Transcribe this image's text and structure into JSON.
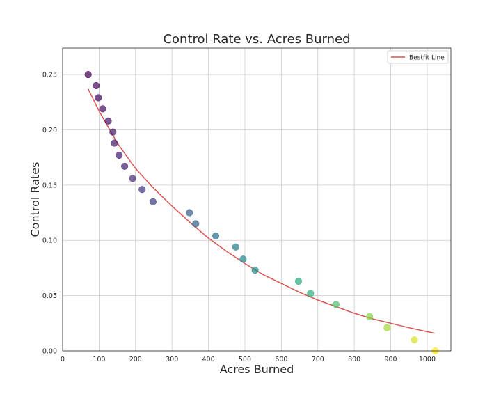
{
  "chart_data": {
    "type": "scatter",
    "title": "Control Rate vs. Acres Burned",
    "xlabel": "Acres Burned",
    "ylabel": "Control Rates",
    "xlim": [
      0,
      1065
    ],
    "ylim": [
      0,
      0.274
    ],
    "x_ticks": [
      0,
      100,
      200,
      300,
      400,
      500,
      600,
      700,
      800,
      900,
      1000
    ],
    "y_ticks": [
      0.0,
      0.05,
      0.1,
      0.15,
      0.2,
      0.25
    ],
    "y_tick_labels": [
      "0.00",
      "0.05",
      "0.10",
      "0.15",
      "0.20",
      "0.25"
    ],
    "grid": true,
    "legend": {
      "position": "top-right",
      "entries": [
        {
          "label": "Bestfit Line",
          "color": "#d9534f"
        }
      ]
    },
    "colormap": "viridis",
    "series": [
      {
        "kind": "scatter",
        "points": [
          {
            "x": 70,
            "y": 0.25
          },
          {
            "x": 92,
            "y": 0.24
          },
          {
            "x": 98,
            "y": 0.229
          },
          {
            "x": 110,
            "y": 0.219
          },
          {
            "x": 125,
            "y": 0.208
          },
          {
            "x": 138,
            "y": 0.198
          },
          {
            "x": 142,
            "y": 0.188
          },
          {
            "x": 155,
            "y": 0.177
          },
          {
            "x": 170,
            "y": 0.167
          },
          {
            "x": 192,
            "y": 0.156
          },
          {
            "x": 218,
            "y": 0.146
          },
          {
            "x": 248,
            "y": 0.135
          },
          {
            "x": 348,
            "y": 0.125
          },
          {
            "x": 365,
            "y": 0.115
          },
          {
            "x": 420,
            "y": 0.104
          },
          {
            "x": 475,
            "y": 0.094
          },
          {
            "x": 495,
            "y": 0.083
          },
          {
            "x": 528,
            "y": 0.073
          },
          {
            "x": 647,
            "y": 0.063
          },
          {
            "x": 680,
            "y": 0.052
          },
          {
            "x": 750,
            "y": 0.042
          },
          {
            "x": 842,
            "y": 0.031
          },
          {
            "x": 890,
            "y": 0.021
          },
          {
            "x": 965,
            "y": 0.01
          },
          {
            "x": 1022,
            "y": 0.0
          }
        ]
      },
      {
        "kind": "line",
        "name": "Bestfit Line",
        "color": "#d9534f",
        "points": [
          {
            "x": 70,
            "y": 0.237
          },
          {
            "x": 100,
            "y": 0.217
          },
          {
            "x": 150,
            "y": 0.188
          },
          {
            "x": 200,
            "y": 0.165
          },
          {
            "x": 250,
            "y": 0.147
          },
          {
            "x": 300,
            "y": 0.131
          },
          {
            "x": 350,
            "y": 0.116
          },
          {
            "x": 400,
            "y": 0.102
          },
          {
            "x": 450,
            "y": 0.09
          },
          {
            "x": 500,
            "y": 0.079
          },
          {
            "x": 550,
            "y": 0.069
          },
          {
            "x": 600,
            "y": 0.061
          },
          {
            "x": 650,
            "y": 0.053
          },
          {
            "x": 700,
            "y": 0.046
          },
          {
            "x": 750,
            "y": 0.04
          },
          {
            "x": 800,
            "y": 0.034
          },
          {
            "x": 850,
            "y": 0.029
          },
          {
            "x": 900,
            "y": 0.025
          },
          {
            "x": 950,
            "y": 0.021
          },
          {
            "x": 1020,
            "y": 0.016
          }
        ]
      }
    ]
  }
}
